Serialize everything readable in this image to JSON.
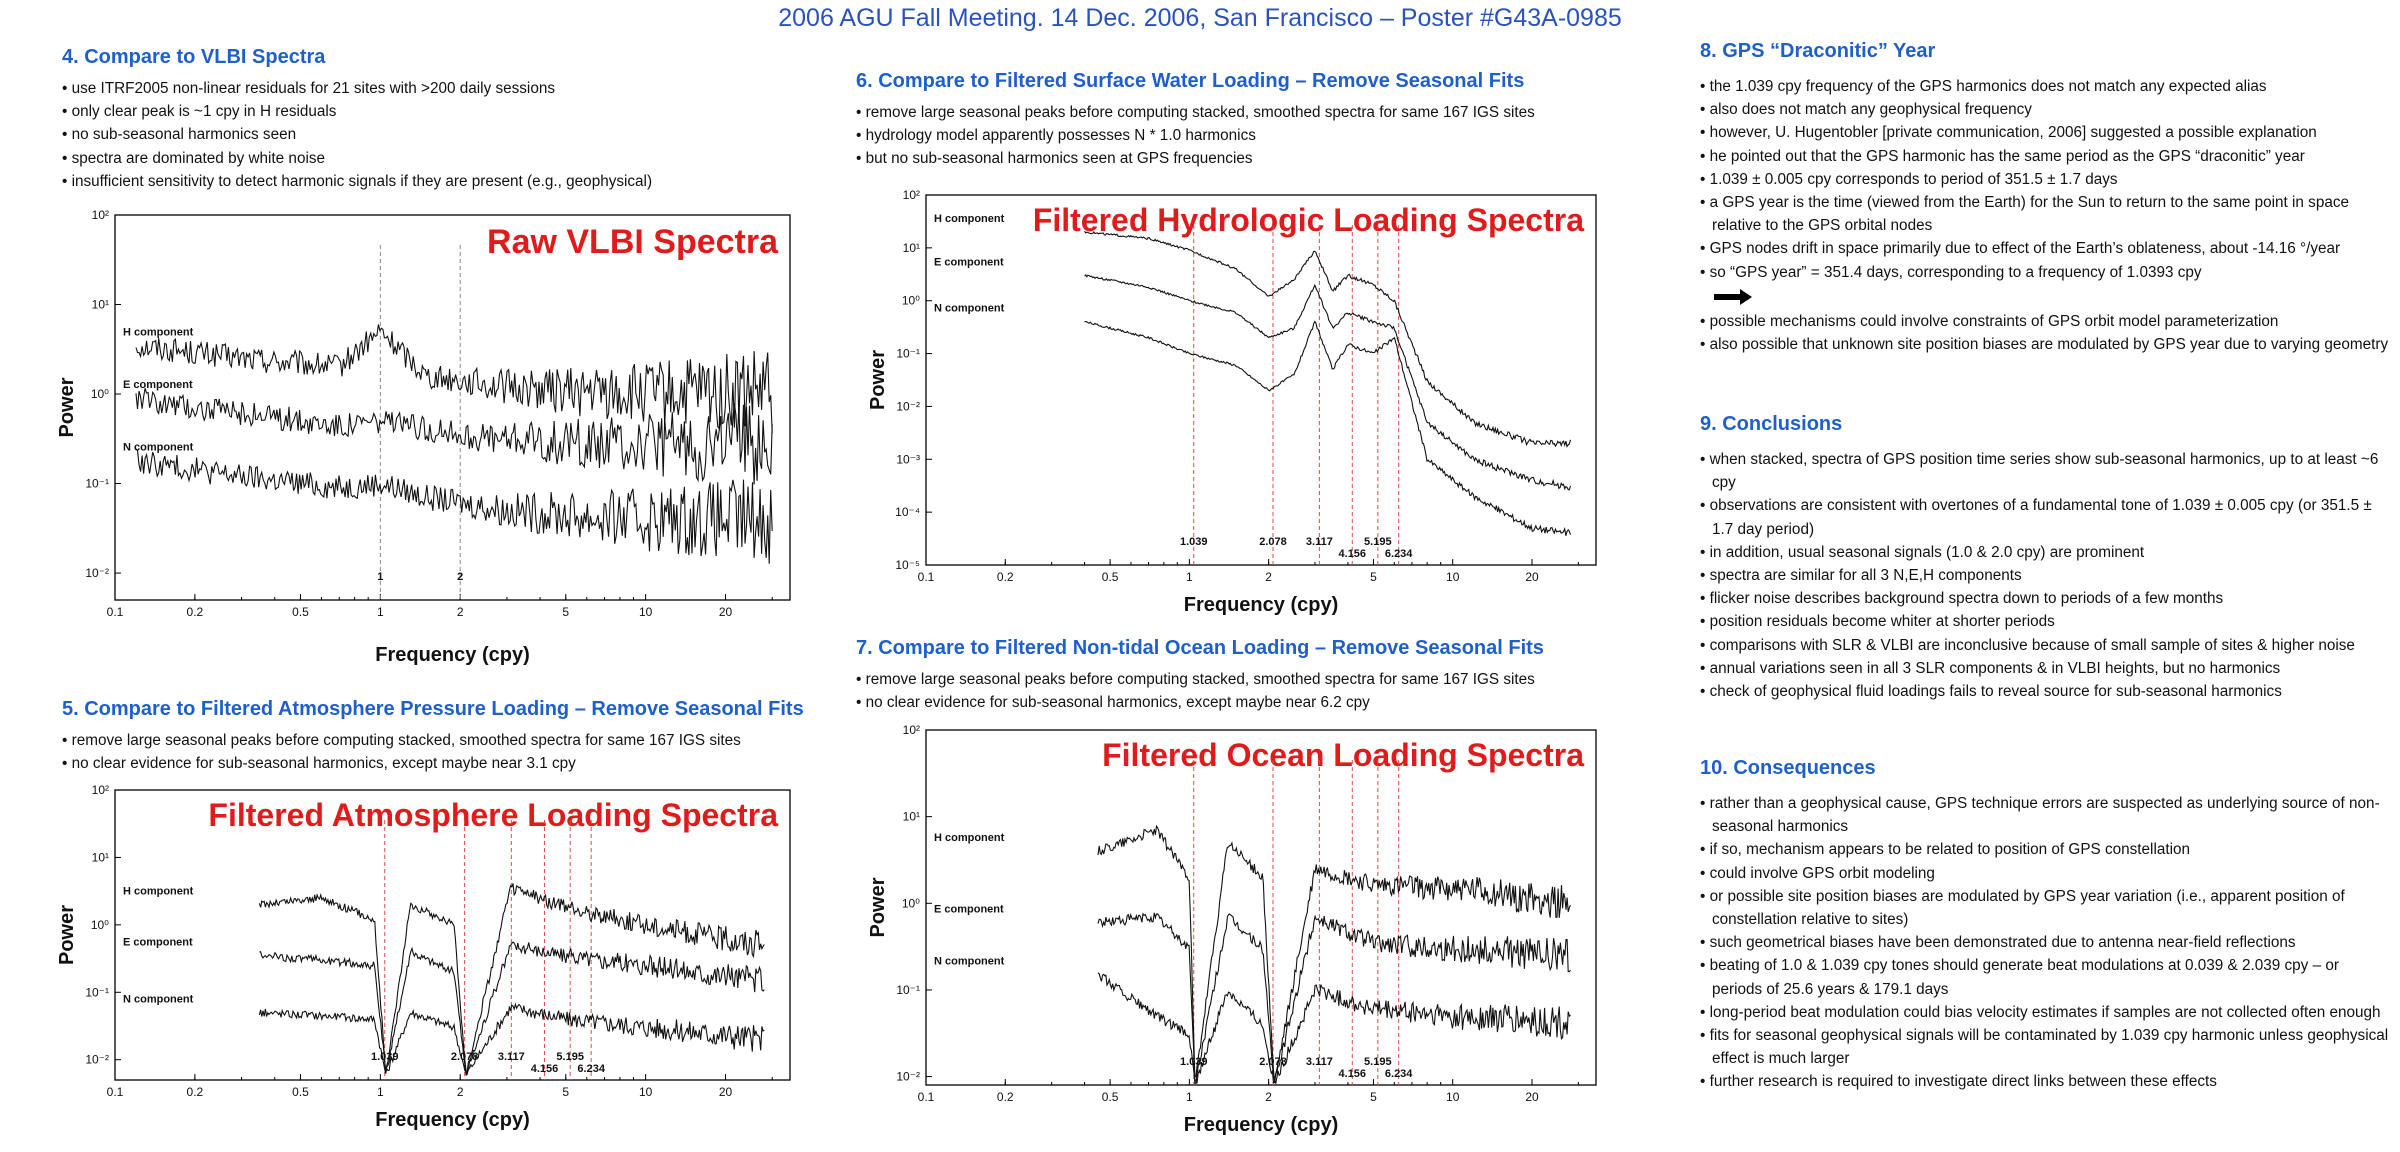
{
  "header": {
    "title": "2006 AGU Fall Meeting. 14 Dec. 2006, San Francisco – Poster #G43A-0985"
  },
  "s4": {
    "heading": "4. Compare to VLBI Spectra",
    "bullets": [
      "use ITRF2005 non-linear residuals for 21 sites with >200 daily sessions",
      "only clear peak is ~1 cpy in H residuals",
      "no sub-seasonal harmonics seen",
      "spectra are dominated by white noise",
      "insufficient sensitivity to detect harmonic signals if they are present (e.g., geophysical)"
    ]
  },
  "s5": {
    "heading": "5. Compare to Filtered Atmosphere Pressure Loading – Remove Seasonal Fits",
    "bullets": [
      "remove large seasonal peaks before computing stacked, smoothed spectra for same 167 IGS sites",
      "no clear evidence for sub-seasonal harmonics, except maybe near 3.1 cpy"
    ]
  },
  "s6": {
    "heading": "6. Compare to Filtered Surface Water Loading – Remove Seasonal Fits",
    "bullets": [
      "remove large seasonal peaks before computing stacked, smoothed spectra for same 167 IGS sites",
      "hydrology model apparently possesses N * 1.0 harmonics",
      "but no sub-seasonal harmonics seen at GPS frequencies"
    ]
  },
  "s7": {
    "heading": "7. Compare to Filtered Non-tidal Ocean Loading – Remove Seasonal Fits",
    "bullets": [
      "remove large seasonal peaks before computing stacked, smoothed spectra for same 167 IGS sites",
      "no clear evidence for sub-seasonal harmonics, except maybe near 6.2 cpy"
    ]
  },
  "s8": {
    "heading": "8. GPS “Draconitic” Year",
    "bullets": [
      "the 1.039 cpy frequency of the GPS harmonics does not match any expected alias",
      "also does not match any geophysical frequency",
      "however, U. Hugentobler [private communication, 2006] suggested a possible explanation",
      "he pointed out that the GPS harmonic has the same period as the GPS “draconitic” year",
      "1.039 ± 0.005 cpy corresponds to period of 351.5 ± 1.7 days",
      "a GPS year is the time (viewed from the Earth) for the Sun to return to the same point in space relative to the GPS orbital nodes",
      "GPS nodes drift in space primarily due to effect of the Earth’s oblateness, about -14.16 °/year",
      "so “GPS year” = 351.4 days, corresponding to a frequency of 1.0393 cpy"
    ],
    "bullets2": [
      "possible mechanisms could involve constraints of GPS orbit model parameterization",
      "also possible that unknown site position biases are modulated by GPS year due to varying geometry"
    ]
  },
  "s9": {
    "heading": "9. Conclusions",
    "bullets": [
      "when stacked, spectra of GPS position time series show sub-seasonal harmonics, up to at least ~6 cpy",
      "observations are consistent with overtones of a fundamental tone of 1.039 ± 0.005 cpy (or 351.5 ± 1.7 day period)",
      "in addition, usual seasonal signals (1.0 & 2.0 cpy) are prominent",
      "spectra are similar for all 3 N,E,H components",
      "flicker noise describes background spectra down to periods of a few months",
      "position residuals become whiter at shorter periods",
      "comparisons with SLR & VLBI are inconclusive because of small sample of sites & higher noise",
      "annual variations seen in all 3 SLR components & in VLBI heights, but no harmonics",
      "check of geophysical fluid loadings fails to reveal source for sub-seasonal harmonics"
    ]
  },
  "s10": {
    "heading": "10. Consequences",
    "bullets": [
      "rather than a geophysical cause, GPS technique errors are suspected as underlying source of non-seasonal harmonics",
      "if so, mechanism appears to be related to position of GPS constellation",
      "could involve GPS orbit modeling",
      "or possible site position biases are modulated by GPS year variation (i.e., apparent position of constellation relative to sites)",
      "such geometrical biases have been demonstrated due to antenna near-field reflections",
      "beating of 1.0 & 1.039 cpy tones should generate beat modulations at 0.039 & 2.039 cpy – or periods of 25.6 years & 179.1 days",
      "long-period beat modulation could bias velocity estimates if samples are not collected often enough",
      "fits for seasonal geophysical signals will be contaminated by 1.039 cpy harmonic unless geophysical effect is much larger",
      "further research is required to investigate direct links between these effects"
    ]
  },
  "chart_data": [
    {
      "type": "line",
      "id": "vlbi",
      "title": "Raw VLBI Spectra",
      "xlabel": "Frequency (cpy)",
      "ylabel": "Power",
      "log_x": true,
      "log_y": true,
      "xlim": [
        0.1,
        35
      ],
      "ylim": [
        0.005,
        100
      ],
      "x_ticks": [
        "0.1",
        "0.2",
        "0.5",
        "1",
        "2",
        "5",
        "10",
        "20"
      ],
      "y_ticks": [
        "10²",
        "10¹",
        "10⁰",
        "10⁻¹",
        "10⁻²"
      ],
      "series": [
        {
          "name": "H component",
          "x": [
            0.12,
            0.3,
            0.7,
            1.0,
            1.5,
            3,
            8,
            30
          ],
          "y": [
            3.5,
            2.5,
            2.0,
            5.0,
            1.6,
            1.2,
            1.0,
            1.0
          ]
        },
        {
          "name": "E component",
          "x": [
            0.12,
            0.3,
            0.7,
            1.0,
            1.5,
            3,
            8,
            30
          ],
          "y": [
            0.9,
            0.6,
            0.45,
            0.5,
            0.4,
            0.3,
            0.28,
            0.28
          ]
        },
        {
          "name": "N component",
          "x": [
            0.12,
            0.3,
            0.7,
            1.0,
            1.5,
            3,
            8,
            30
          ],
          "y": [
            0.18,
            0.12,
            0.09,
            0.1,
            0.07,
            0.05,
            0.04,
            0.04
          ]
        }
      ],
      "markers": [
        "1",
        "2"
      ],
      "markers_x": [
        1,
        2
      ]
    },
    {
      "type": "line",
      "id": "atm",
      "title": "Filtered Atmosphere Loading Spectra",
      "xlabel": "Frequency (cpy)",
      "ylabel": "Power",
      "log_x": true,
      "log_y": true,
      "xlim": [
        0.1,
        35
      ],
      "ylim": [
        0.005,
        100
      ],
      "x_ticks": [
        "0.1",
        "0.2",
        "0.5",
        "1",
        "2",
        "5",
        "10",
        "20"
      ],
      "y_ticks": [
        "10²",
        "10¹",
        "10⁰",
        "10⁻¹",
        "10⁻²"
      ],
      "series": [
        {
          "name": "H component",
          "x": [
            0.35,
            0.6,
            0.95,
            1.05,
            1.3,
            1.9,
            2.1,
            3.1,
            5,
            10,
            28
          ],
          "y": [
            2.0,
            2.5,
            1.2,
            0.006,
            2.0,
            1.0,
            0.006,
            3.5,
            1.8,
            1.0,
            0.5
          ]
        },
        {
          "name": "E component",
          "x": [
            0.35,
            0.6,
            0.95,
            1.05,
            1.3,
            1.9,
            2.1,
            3.1,
            5,
            10,
            28
          ],
          "y": [
            0.35,
            0.3,
            0.25,
            0.006,
            0.4,
            0.2,
            0.006,
            0.5,
            0.35,
            0.25,
            0.15
          ]
        },
        {
          "name": "N component",
          "x": [
            0.35,
            0.6,
            0.95,
            1.05,
            1.3,
            1.9,
            2.1,
            3.1,
            5,
            10,
            28
          ],
          "y": [
            0.05,
            0.045,
            0.04,
            0.006,
            0.05,
            0.03,
            0.006,
            0.06,
            0.04,
            0.03,
            0.02
          ]
        }
      ],
      "markers": [
        "1.039",
        "2.078",
        "3.117",
        "4.156",
        "5.195",
        "6.234"
      ],
      "markers_x": [
        1.039,
        2.078,
        3.117,
        4.156,
        5.195,
        6.234
      ]
    },
    {
      "type": "line",
      "id": "hydro",
      "title": "Filtered Hydrologic Loading Spectra",
      "xlabel": "Frequency (cpy)",
      "ylabel": "Power",
      "log_x": true,
      "log_y": true,
      "xlim": [
        0.1,
        35
      ],
      "ylim": [
        1e-05,
        100
      ],
      "x_ticks": [
        "0.1",
        "0.2",
        "0.5",
        "1",
        "2",
        "5",
        "10",
        "20"
      ],
      "y_ticks": [
        "10²",
        "10¹",
        "10⁰",
        "10⁻¹",
        "10⁻²",
        "10⁻³",
        "10⁻⁴",
        "10⁻⁵"
      ],
      "series": [
        {
          "name": "H component",
          "x": [
            0.4,
            0.7,
            1.0,
            1.5,
            2.0,
            2.5,
            3.0,
            3.5,
            4.0,
            5.0,
            6.0,
            8,
            12,
            20,
            28
          ],
          "y": [
            20,
            15,
            9,
            4,
            1.2,
            2.5,
            9,
            1.5,
            3,
            2,
            1,
            0.03,
            0.005,
            0.002,
            0.002
          ]
        },
        {
          "name": "E component",
          "x": [
            0.4,
            0.7,
            1.0,
            1.5,
            2.0,
            2.5,
            3.0,
            3.5,
            4.0,
            5.0,
            6.0,
            8,
            12,
            20,
            28
          ],
          "y": [
            3,
            1.8,
            1,
            0.6,
            0.2,
            0.3,
            2,
            0.3,
            0.6,
            0.4,
            0.3,
            0.005,
            0.001,
            0.0004,
            0.0003
          ]
        },
        {
          "name": "N component",
          "x": [
            0.4,
            0.7,
            1.0,
            1.5,
            2.0,
            2.5,
            3.0,
            3.5,
            4.0,
            5.0,
            6.0,
            8,
            12,
            20,
            28
          ],
          "y": [
            0.4,
            0.2,
            0.1,
            0.06,
            0.02,
            0.04,
            0.4,
            0.05,
            0.15,
            0.1,
            0.2,
            0.001,
            0.0002,
            5e-05,
            4e-05
          ]
        }
      ],
      "markers": [
        "1.039",
        "2.078",
        "3.117",
        "4.156",
        "5.195",
        "6.234"
      ],
      "markers_x": [
        1.039,
        2.078,
        3.117,
        4.156,
        5.195,
        6.234
      ]
    },
    {
      "type": "line",
      "id": "ocean",
      "title": "Filtered Ocean Loading Spectra",
      "xlabel": "Frequency (cpy)",
      "ylabel": "Power",
      "log_x": true,
      "log_y": true,
      "xlim": [
        0.1,
        35
      ],
      "ylim": [
        0.008,
        100
      ],
      "x_ticks": [
        "0.1",
        "0.2",
        "0.5",
        "1",
        "2",
        "5",
        "10",
        "20"
      ],
      "y_ticks": [
        "10²",
        "10¹",
        "10⁰",
        "10⁻¹",
        "10⁻²"
      ],
      "series": [
        {
          "name": "H component",
          "x": [
            0.45,
            0.75,
            1.0,
            1.05,
            1.4,
            1.9,
            2.1,
            3,
            5,
            10,
            28
          ],
          "y": [
            4,
            7,
            2,
            0.008,
            5,
            2,
            0.008,
            2.5,
            1.6,
            1.5,
            1.0
          ]
        },
        {
          "name": "E component",
          "x": [
            0.45,
            0.75,
            1.0,
            1.05,
            1.4,
            1.9,
            2.1,
            3,
            5,
            10,
            28
          ],
          "y": [
            0.6,
            0.7,
            0.3,
            0.008,
            0.7,
            0.3,
            0.008,
            0.7,
            0.35,
            0.3,
            0.25
          ]
        },
        {
          "name": "N component",
          "x": [
            0.45,
            0.75,
            1.0,
            1.05,
            1.4,
            1.9,
            2.1,
            3,
            5,
            10,
            28
          ],
          "y": [
            0.15,
            0.05,
            0.03,
            0.008,
            0.1,
            0.04,
            0.008,
            0.1,
            0.06,
            0.05,
            0.04
          ]
        }
      ],
      "markers": [
        "1.039",
        "2.078",
        "3.117",
        "4.156",
        "5.195",
        "6.234"
      ],
      "markers_x": [
        1.039,
        2.078,
        3.117,
        4.156,
        5.195,
        6.234
      ]
    }
  ]
}
